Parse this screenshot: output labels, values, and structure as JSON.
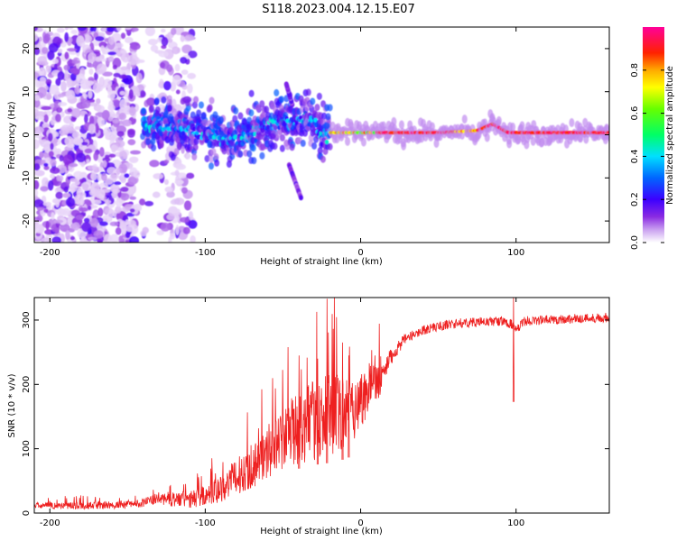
{
  "title": "S118.2023.004.12.15.E07",
  "colors": {
    "snr_line": "#ee2020",
    "axis": "#000000",
    "colormap": [
      "#ffffff",
      "#d9b8f5",
      "#8a2be2",
      "#3c00ff",
      "#0066ff",
      "#00e0ff",
      "#00ff66",
      "#66ff00",
      "#ffff00",
      "#ffaa00",
      "#ff2200",
      "#ff0099"
    ]
  },
  "chart_data": [
    {
      "type": "heatmap",
      "title": "",
      "xlabel": "Height of straight line (km)",
      "ylabel": "Frequency (Hz)",
      "xlim": [
        -210,
        160
      ],
      "ylim": [
        -25,
        25
      ],
      "xticks": [
        "-200",
        "-100",
        "0",
        "100"
      ],
      "xtick_values": [
        -200,
        -100,
        0,
        100
      ],
      "yticks": [
        "20",
        "10",
        "0",
        "-10",
        "-20"
      ],
      "ytick_values": [
        20,
        10,
        0,
        -10,
        -20
      ],
      "grid": false,
      "colorbar": {
        "label": "Normalized spectral amplitude",
        "range": [
          0,
          1
        ],
        "ticks": [
          "0.0",
          "0.2",
          "0.4",
          "0.6",
          "0.8"
        ],
        "tick_values": [
          0.0,
          0.2,
          0.4,
          0.6,
          0.8
        ]
      },
      "features": {
        "noise_region_x": [
          -210,
          -108
        ],
        "ridge_x": [
          -140,
          160
        ],
        "ridge_frequency_hz": [
          [
            -140,
            2.5
          ],
          [
            -120,
            1.5
          ],
          [
            -100,
            0.5
          ],
          [
            -80,
            -1.5
          ],
          [
            -60,
            2.5
          ],
          [
            -45,
            3.5
          ],
          [
            -30,
            4.0
          ],
          [
            -25,
            -1.0
          ],
          [
            -20,
            0.5
          ],
          [
            0,
            0.5
          ],
          [
            50,
            0.5
          ],
          [
            75,
            1.0
          ],
          [
            85,
            2.5
          ],
          [
            95,
            0.5
          ],
          [
            160,
            0.5
          ]
        ],
        "peak_amplitude": 1.0
      }
    },
    {
      "type": "line",
      "title": "",
      "xlabel": "Height of straight line (km)",
      "ylabel": "SNR (10 * v/v)",
      "xlim": [
        -210,
        160
      ],
      "ylim": [
        0,
        335
      ],
      "xticks": [
        "-200",
        "-100",
        "0",
        "100"
      ],
      "xtick_values": [
        -200,
        -100,
        0,
        100
      ],
      "yticks": [
        "0",
        "100",
        "200",
        "300"
      ],
      "ytick_values": [
        0,
        100,
        200,
        300
      ],
      "grid": false,
      "series": [
        {
          "values_envelope": [
            [
              -210,
              10
            ],
            [
              -190,
              10
            ],
            [
              -170,
              10
            ],
            [
              -150,
              11
            ],
            [
              -140,
              14
            ],
            [
              -130,
              20
            ],
            [
              -120,
              18
            ],
            [
              -110,
              16
            ],
            [
              -100,
              22
            ],
            [
              -90,
              32
            ],
            [
              -80,
              48
            ],
            [
              -70,
              62
            ],
            [
              -60,
              80
            ],
            [
              -50,
              100
            ],
            [
              -40,
              115
            ],
            [
              -30,
              125
            ],
            [
              -20,
              130
            ],
            [
              -10,
              140
            ],
            [
              0,
              160
            ],
            [
              10,
              195
            ],
            [
              15,
              215
            ],
            [
              20,
              240
            ],
            [
              25,
              258
            ],
            [
              30,
              270
            ],
            [
              40,
              282
            ],
            [
              50,
              288
            ],
            [
              60,
              292
            ],
            [
              70,
              294
            ],
            [
              80,
              295
            ],
            [
              90,
              296
            ],
            [
              97,
              292
            ],
            [
              100,
              280
            ],
            [
              105,
              296
            ],
            [
              120,
              298
            ],
            [
              140,
              300
            ],
            [
              160,
              302
            ]
          ],
          "noise_amplitude": [
            [
              -210,
              6
            ],
            [
              -140,
              8
            ],
            [
              -120,
              15
            ],
            [
              -100,
              20
            ],
            [
              -80,
              35
            ],
            [
              -60,
              50
            ],
            [
              -40,
              70
            ],
            [
              -20,
              85
            ],
            [
              0,
              60
            ],
            [
              15,
              35
            ],
            [
              30,
              15
            ],
            [
              160,
              15
            ]
          ],
          "spikes": [
            [
              -22,
              333
            ],
            [
              -28,
              240
            ],
            [
              -40,
              245
            ],
            [
              -12,
              265
            ],
            [
              -8,
              245
            ],
            [
              98,
              335
            ]
          ]
        }
      ]
    }
  ]
}
